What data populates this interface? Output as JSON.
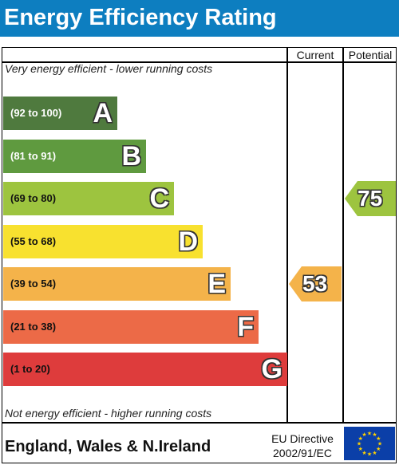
{
  "title": "Energy Efficiency Rating",
  "columns": {
    "current": "Current",
    "potential": "Potential"
  },
  "notes": {
    "top": "Very energy efficient - lower running costs",
    "bottom": "Not energy efficient - higher running costs"
  },
  "footer": {
    "region": "England, Wales & N.Ireland",
    "directive_line1": "EU Directive",
    "directive_line2": "2002/91/EC",
    "flag_icon": "eu-flag-icon"
  },
  "chart_data": {
    "type": "bar",
    "bands": [
      {
        "letter": "A",
        "range": "(92 to 100)",
        "min": 92,
        "max": 100,
        "color": "#4f7a3e",
        "range_color": "#ffffff"
      },
      {
        "letter": "B",
        "range": "(81 to 91)",
        "min": 81,
        "max": 91,
        "color": "#5f9a3f",
        "range_color": "#ffffff"
      },
      {
        "letter": "C",
        "range": "(69 to 80)",
        "min": 69,
        "max": 80,
        "color": "#9dc43f",
        "range_color": "#111111"
      },
      {
        "letter": "D",
        "range": "(55 to 68)",
        "min": 55,
        "max": 68,
        "color": "#f8e12f",
        "range_color": "#111111"
      },
      {
        "letter": "E",
        "range": "(39 to 54)",
        "min": 39,
        "max": 54,
        "color": "#f4b34a",
        "range_color": "#111111"
      },
      {
        "letter": "F",
        "range": "(21 to 38)",
        "min": 21,
        "max": 38,
        "color": "#ec6a47",
        "range_color": "#111111"
      },
      {
        "letter": "G",
        "range": "(1 to 20)",
        "min": 1,
        "max": 20,
        "color": "#de3c3c",
        "range_color": "#111111"
      }
    ],
    "ratings": {
      "current": {
        "value": 53,
        "band": "E",
        "color": "#f4b34a"
      },
      "potential": {
        "value": 75,
        "band": "C",
        "color": "#9dc43f"
      }
    }
  }
}
